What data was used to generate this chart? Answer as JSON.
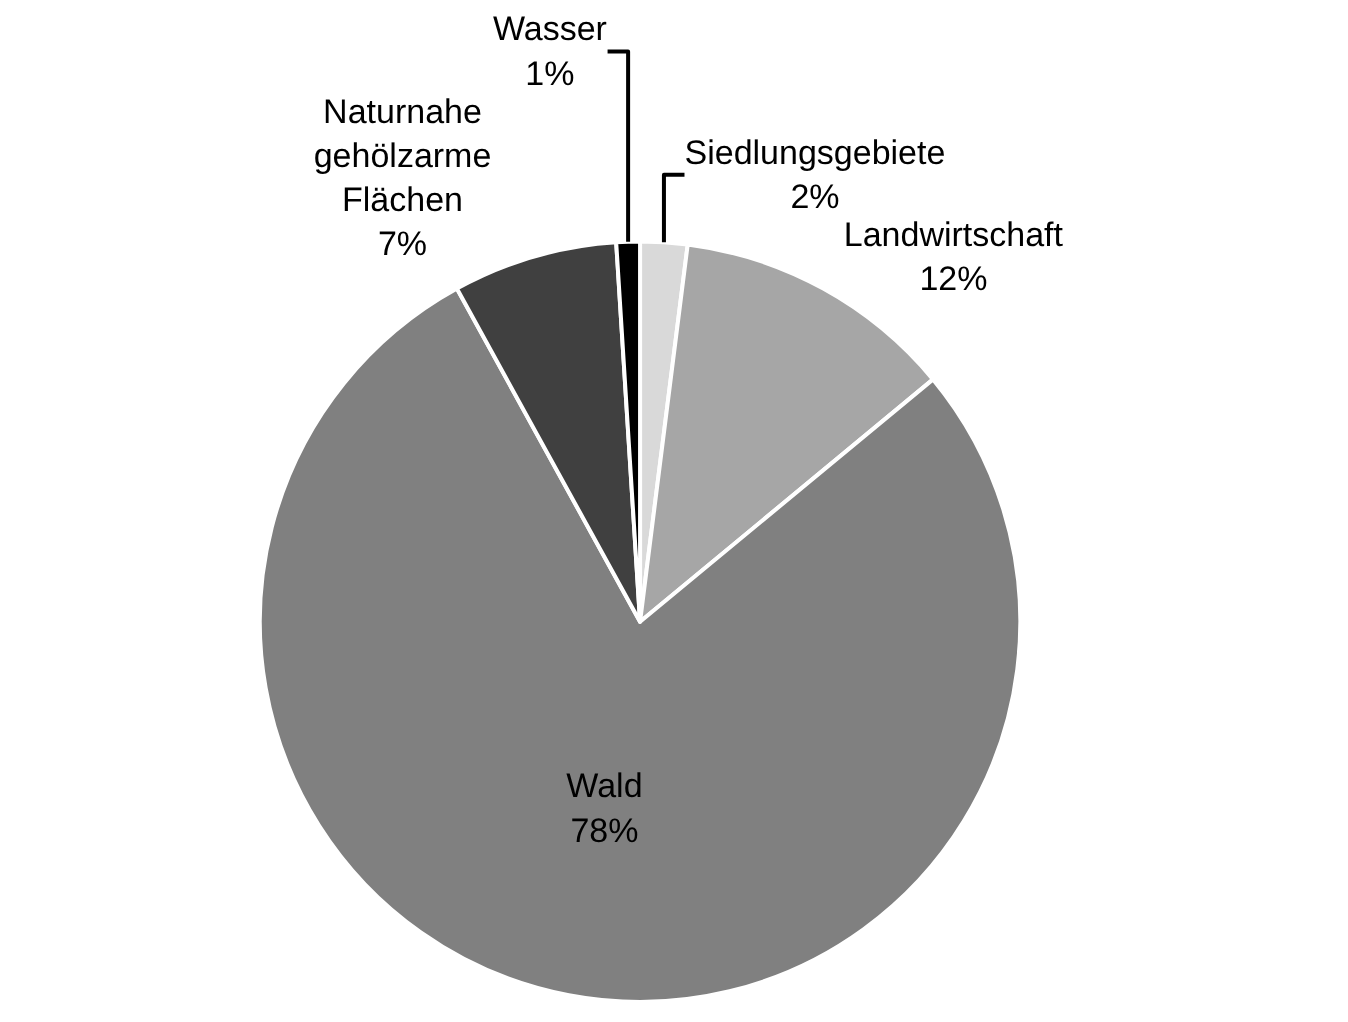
{
  "chart_data": {
    "type": "pie",
    "categories": [
      "Siedlungsgebiete",
      "Landwirtschaft",
      "Wald",
      "Naturnahe gehölzarme Flächen",
      "Wasser"
    ],
    "values": [
      2,
      12,
      78,
      7,
      1
    ],
    "value_labels": [
      "2%",
      "12%",
      "78%",
      "7%",
      "1%"
    ],
    "colors": [
      "#d9d9d9",
      "#a6a6a6",
      "#808080",
      "#404040",
      "#000000"
    ],
    "legend": false
  }
}
